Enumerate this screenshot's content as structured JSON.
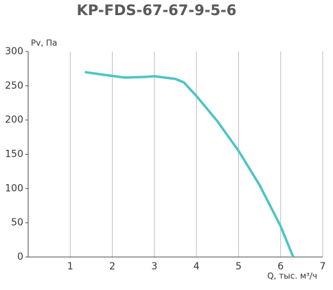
{
  "chart_data": {
    "type": "line",
    "title": "KP-FDS-67-67-9-5-6",
    "y_label": "Pv, Па",
    "x_label": "Q, тыс. м³/ч",
    "series": [
      {
        "name": "Pv",
        "color": "#4cc4c6",
        "x": [
          1.35,
          1.8,
          2.3,
          2.8,
          3.0,
          3.5,
          3.7,
          4.0,
          4.5,
          5.0,
          5.5,
          6.0,
          6.3
        ],
        "values": [
          270,
          266,
          262,
          263,
          264,
          260,
          255,
          235,
          198,
          155,
          105,
          45,
          0
        ]
      }
    ],
    "xlim": [
      0,
      7
    ],
    "ylim": [
      0,
      300
    ],
    "xticks": [
      1,
      2,
      3,
      4,
      5,
      6,
      7
    ],
    "yticks": [
      0,
      50,
      100,
      150,
      200,
      250,
      300
    ],
    "grid": true
  }
}
